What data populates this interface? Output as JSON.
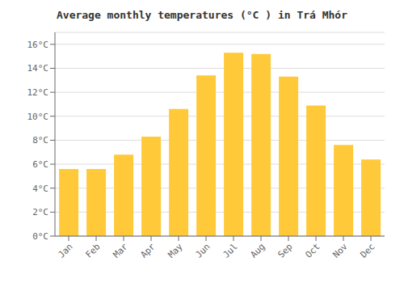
{
  "chart_data": {
    "type": "bar",
    "title": "Average monthly temperatures (°C ) in Trá Mhór",
    "categories": [
      "Jan",
      "Feb",
      "Mar",
      "Apr",
      "May",
      "Jun",
      "Jul",
      "Aug",
      "Sep",
      "Oct",
      "Nov",
      "Dec"
    ],
    "values": [
      5.6,
      5.6,
      6.8,
      8.3,
      10.6,
      13.4,
      15.3,
      15.2,
      13.3,
      10.9,
      7.6,
      6.4
    ],
    "color": "#FFC93A",
    "ylim": [
      0,
      17
    ],
    "yticks": [
      {
        "value": 0,
        "label": "0°C"
      },
      {
        "value": 2,
        "label": "2°C"
      },
      {
        "value": 4,
        "label": "4°C"
      },
      {
        "value": 6,
        "label": "6°C"
      },
      {
        "value": 8,
        "label": "8°C"
      },
      {
        "value": 10,
        "label": "10°C"
      },
      {
        "value": 12,
        "label": "12°C"
      },
      {
        "value": 14,
        "label": "14°C"
      },
      {
        "value": 16,
        "label": "16°C"
      }
    ],
    "grid": true
  }
}
